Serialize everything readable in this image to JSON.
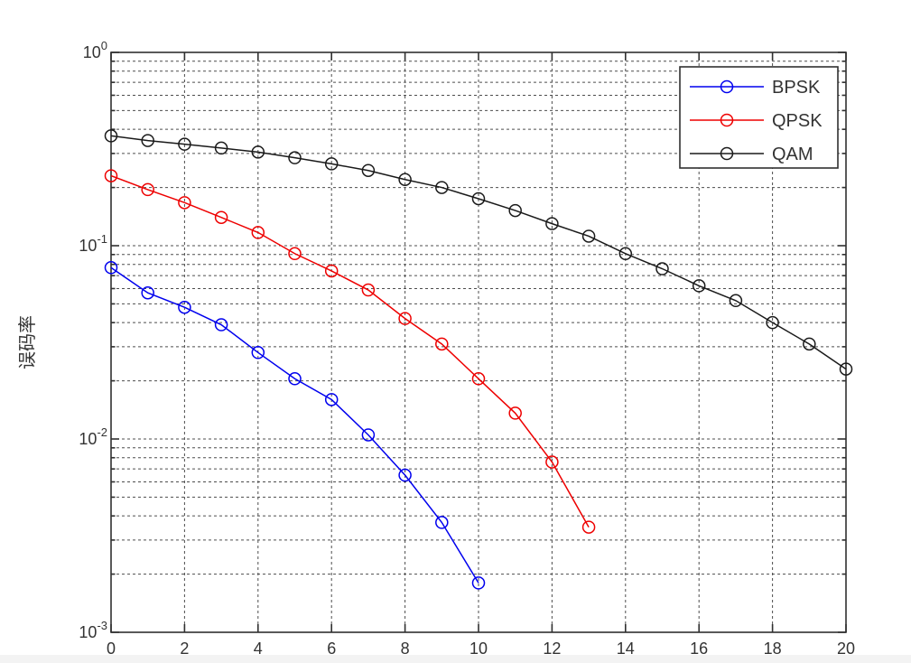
{
  "figure": {
    "title": "",
    "background": "#ffffff",
    "axis_color": "#303030",
    "grid_color": "#4d4d4d",
    "text_color": "#333333"
  },
  "chart_data": {
    "type": "line",
    "title": "",
    "xlabel": "",
    "ylabel": "误码率",
    "xlim": [
      0,
      20
    ],
    "ylim": [
      0.001,
      1
    ],
    "yscale": "log",
    "grid": true,
    "grid_style": "dashed",
    "xticks": [
      0,
      2,
      4,
      6,
      8,
      10,
      12,
      14,
      16,
      18,
      20
    ],
    "ytick_labels": [
      "10^0",
      "10^-1",
      "10^-2",
      "10^-3"
    ],
    "ytick_exponents": [
      0,
      -1,
      -2,
      -3
    ],
    "legend_position": "top-right-inside",
    "marker": "circle",
    "series": [
      {
        "name": "BPSK",
        "color": "#0000ee",
        "x": [
          0,
          1,
          2,
          3,
          4,
          5,
          6,
          7,
          8,
          9,
          10
        ],
        "y": [
          0.077,
          0.057,
          0.048,
          0.039,
          0.028,
          0.0205,
          0.016,
          0.0105,
          0.0065,
          0.0037,
          0.0018
        ]
      },
      {
        "name": "QPSK",
        "color": "#ee0000",
        "x": [
          0,
          1,
          2,
          3,
          4,
          5,
          6,
          7,
          8,
          9,
          10,
          11,
          12,
          13
        ],
        "y": [
          0.23,
          0.195,
          0.167,
          0.14,
          0.117,
          0.091,
          0.074,
          0.059,
          0.042,
          0.031,
          0.0205,
          0.0136,
          0.0076,
          0.0035
        ]
      },
      {
        "name": "QAM",
        "color": "#1a1a1a",
        "x": [
          0,
          1,
          2,
          3,
          4,
          5,
          6,
          7,
          8,
          9,
          10,
          11,
          12,
          13,
          14,
          15,
          16,
          17,
          18,
          19,
          20
        ],
        "y": [
          0.37,
          0.35,
          0.335,
          0.32,
          0.305,
          0.285,
          0.265,
          0.245,
          0.22,
          0.2,
          0.175,
          0.152,
          0.13,
          0.112,
          0.091,
          0.076,
          0.062,
          0.052,
          0.04,
          0.031,
          0.023
        ]
      }
    ]
  }
}
